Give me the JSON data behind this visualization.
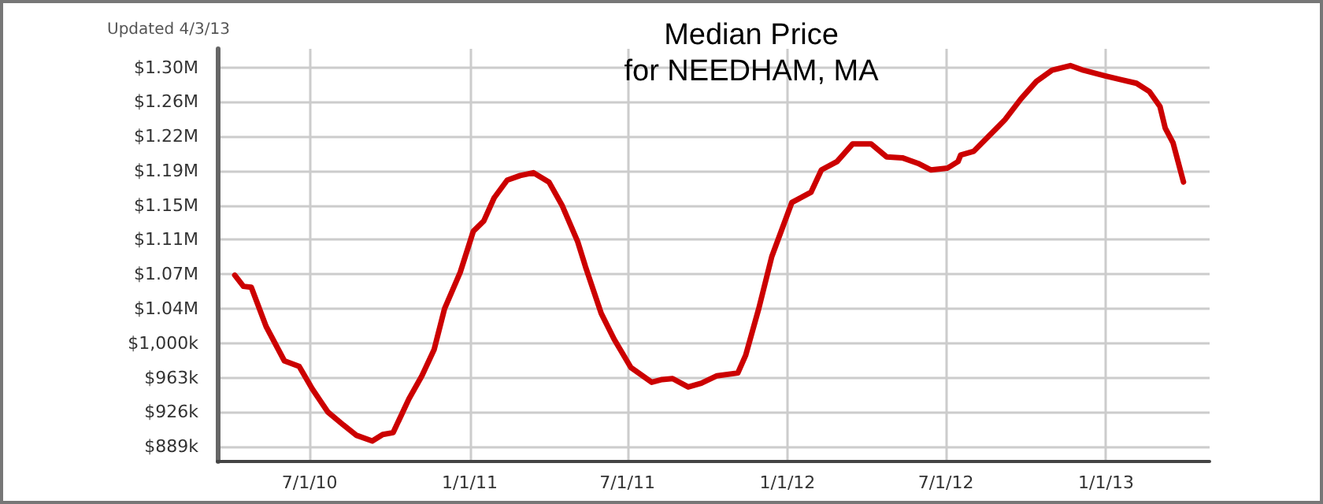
{
  "chart_data": {
    "type": "line",
    "title": "Median Price\nfor NEEDHAM, MA",
    "annotations": [
      "Updated 4/3/13"
    ],
    "x": [
      "2010-04-06",
      "2010-04-16",
      "2010-04-25",
      "2010-05-12",
      "2010-06-02",
      "2010-06-19",
      "2010-07-04",
      "2010-07-22",
      "2010-08-09",
      "2010-08-24",
      "2010-09-11",
      "2010-09-23",
      "2010-10-05",
      "2010-10-23",
      "2010-11-07",
      "2010-11-21",
      "2010-12-03",
      "2010-12-21",
      "2011-01-05",
      "2011-01-17",
      "2011-01-29",
      "2011-02-13",
      "2011-02-28",
      "2011-03-15",
      "2011-04-02",
      "2011-04-17",
      "2011-05-05",
      "2011-05-14",
      "2011-06-01",
      "2011-06-16",
      "2011-07-05",
      "2011-07-14",
      "2011-07-29",
      "2011-08-10",
      "2011-08-22",
      "2011-09-09",
      "2011-09-24",
      "2011-10-12",
      "2011-11-05",
      "2011-11-14",
      "2011-11-29",
      "2011-12-14",
      "2012-01-06",
      "2012-01-28",
      "2012-02-09",
      "2012-02-27",
      "2012-03-16",
      "2012-04-06",
      "2012-04-24",
      "2012-05-12",
      "2012-05-30",
      "2012-06-14",
      "2012-07-03",
      "2012-07-15",
      "2012-07-18",
      "2012-08-02",
      "2012-08-20",
      "2012-09-07",
      "2012-09-25",
      "2012-10-13",
      "2012-10-31",
      "2012-11-21",
      "2012-12-06",
      "2012-12-31",
      "2013-01-18",
      "2013-02-05",
      "2013-02-20",
      "2013-03-04",
      "2013-03-10",
      "2013-03-19",
      "2013-03-31"
    ],
    "series": [
      {
        "color": "#cc0000",
        "values": [
          1073000,
          1061000,
          1060000,
          1018000,
          981000,
          975000,
          951000,
          926000,
          912000,
          901000,
          895000,
          902000,
          904000,
          940000,
          965000,
          993000,
          1037000,
          1076000,
          1120000,
          1131000,
          1156000,
          1175000,
          1180000,
          1183000,
          1173000,
          1148000,
          1109000,
          1082000,
          1032000,
          1004000,
          974000,
          968000,
          958000,
          961000,
          962000,
          953000,
          957000,
          965000,
          968000,
          987000,
          1037000,
          1093000,
          1151000,
          1162000,
          1186000,
          1195000,
          1214000,
          1214000,
          1200000,
          1199000,
          1193000,
          1186000,
          1188000,
          1195000,
          1202000,
          1206000,
          1223000,
          1240000,
          1262000,
          1281000,
          1293000,
          1298000,
          1293000,
          1287000,
          1283000,
          1279000,
          1270000,
          1254000,
          1231000,
          1215000,
          1173000
        ]
      }
    ],
    "xlim": [
      "2010-03-17",
      "2013-04-30"
    ],
    "xticks": [
      {
        "value": "2010-07-01",
        "label": "7/1/10"
      },
      {
        "value": "2011-01-01",
        "label": "1/1/11"
      },
      {
        "value": "2011-07-01",
        "label": "7/1/11"
      },
      {
        "value": "2012-01-01",
        "label": "1/1/12"
      },
      {
        "value": "2012-07-01",
        "label": "7/1/12"
      },
      {
        "value": "2013-01-01",
        "label": "1/1/13"
      }
    ],
    "ylim": [
      873000,
      1316000
    ],
    "yticks": [
      {
        "value": 889000,
        "label": "$889k"
      },
      {
        "value": 926000,
        "label": "$926k"
      },
      {
        "value": 963000,
        "label": "$963k"
      },
      {
        "value": 1000000,
        "label": "$1,000k"
      },
      {
        "value": 1037000,
        "label": "$1.04M"
      },
      {
        "value": 1074000,
        "label": "$1.07M"
      },
      {
        "value": 1111000,
        "label": "$1.11M"
      },
      {
        "value": 1148000,
        "label": "$1.15M"
      },
      {
        "value": 1185000,
        "label": "$1.19M"
      },
      {
        "value": 1222000,
        "label": "$1.22M"
      },
      {
        "value": 1259000,
        "label": "$1.26M"
      },
      {
        "value": 1296000,
        "label": "$1.30M"
      }
    ],
    "grid": true,
    "marker": "none",
    "line_style": "solid"
  }
}
